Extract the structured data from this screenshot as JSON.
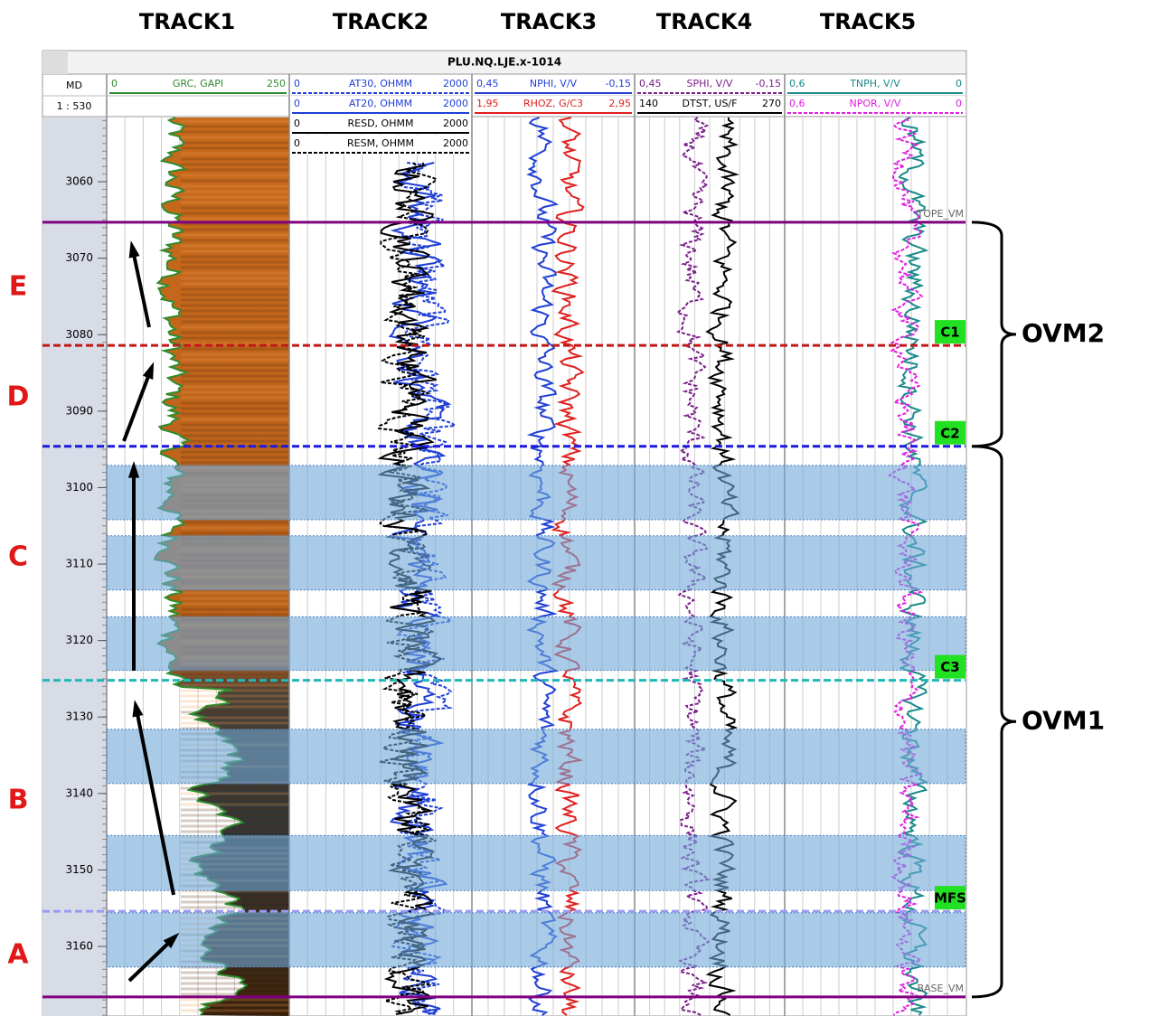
{
  "tracks": [
    "TRACK1",
    "TRACK2",
    "TRACK3",
    "TRACK4",
    "TRACK5"
  ],
  "header": {
    "title": "PLU.NQ.LJE.x-1014",
    "depth_label": "MD",
    "scale": "1 : 530"
  },
  "curves": [
    [
      {
        "min": "0",
        "name": "GRC, GAPI",
        "max": "250",
        "color": "#2e8b2e",
        "dashed": false
      }
    ],
    [
      {
        "min": "0",
        "name": "AT30, OHMM",
        "max": "2000",
        "color": "#1f3fd6",
        "dashed": true
      },
      {
        "min": "0",
        "name": "AT20, OHMM",
        "max": "2000",
        "color": "#1f3fd6",
        "dashed": false
      },
      {
        "min": "0",
        "name": "RESD, OHMM",
        "max": "2000",
        "color": "#000000",
        "dashed": false
      },
      {
        "min": "0",
        "name": "RESM, OHMM",
        "max": "2000",
        "color": "#000000",
        "dashed": true
      }
    ],
    [
      {
        "min": "0,45",
        "name": "NPHI, V/V",
        "max": "-0,15",
        "color": "#1f3fd6",
        "dashed": false
      },
      {
        "min": "1,95",
        "name": "RHOZ, G/C3",
        "max": "2,95",
        "color": "#e02020",
        "dashed": false
      }
    ],
    [
      {
        "min": "0,45",
        "name": "SPHI, V/V",
        "max": "-0,15",
        "color": "#7a1f8a",
        "dashed": true
      },
      {
        "min": "140",
        "name": "DTST, US/F",
        "max": "270",
        "color": "#000000",
        "dashed": false
      }
    ],
    [
      {
        "min": "0,6",
        "name": "TNPH, V/V",
        "max": "0",
        "color": "#1a8a8a",
        "dashed": false
      },
      {
        "min": "0,6",
        "name": "NPOR, V/V",
        "max": "0",
        "color": "#e020e0",
        "dashed": true
      }
    ]
  ],
  "depth": {
    "range": [
      3051.6,
      3169.1
    ],
    "ticks": [
      3060,
      3070,
      3080,
      3090,
      3100,
      3110,
      3120,
      3130,
      3140,
      3150,
      3160
    ]
  },
  "markers": [
    {
      "name": "TOPE_VM",
      "depth": 3065.3,
      "color": "#800080",
      "dashed": false,
      "boxed": false
    },
    {
      "name": "C1",
      "depth": 3081.4,
      "color": "#c01818",
      "dashed": true,
      "boxed": true
    },
    {
      "name": "C2",
      "depth": 3094.6,
      "color": "#1a1ae0",
      "dashed": true,
      "boxed": true
    },
    {
      "name": "C3",
      "depth": 3125.2,
      "color": "#20b8b8",
      "dashed": true,
      "boxed": true
    },
    {
      "name": "MFS",
      "depth": 3155.4,
      "color": "#9a9af0",
      "dashed": true,
      "boxed": true
    },
    {
      "name": "BASE_VM",
      "depth": 3166.6,
      "color": "#800080",
      "dashed": false,
      "boxed": false
    }
  ],
  "intervals": [
    [
      3097.1,
      3104.2
    ],
    [
      3106.3,
      3113.4
    ],
    [
      3116.9,
      3123.9
    ],
    [
      3131.6,
      3138.7
    ],
    [
      3145.5,
      3152.7
    ],
    [
      3155.6,
      3162.7
    ]
  ],
  "zones": [
    "E",
    "D",
    "C",
    "B",
    "A"
  ],
  "formations": [
    {
      "name": "OVM2",
      "top": 3065.3,
      "base": 3094.6
    },
    {
      "name": "OVM1",
      "top": 3094.6,
      "base": 3166.6
    }
  ]
}
